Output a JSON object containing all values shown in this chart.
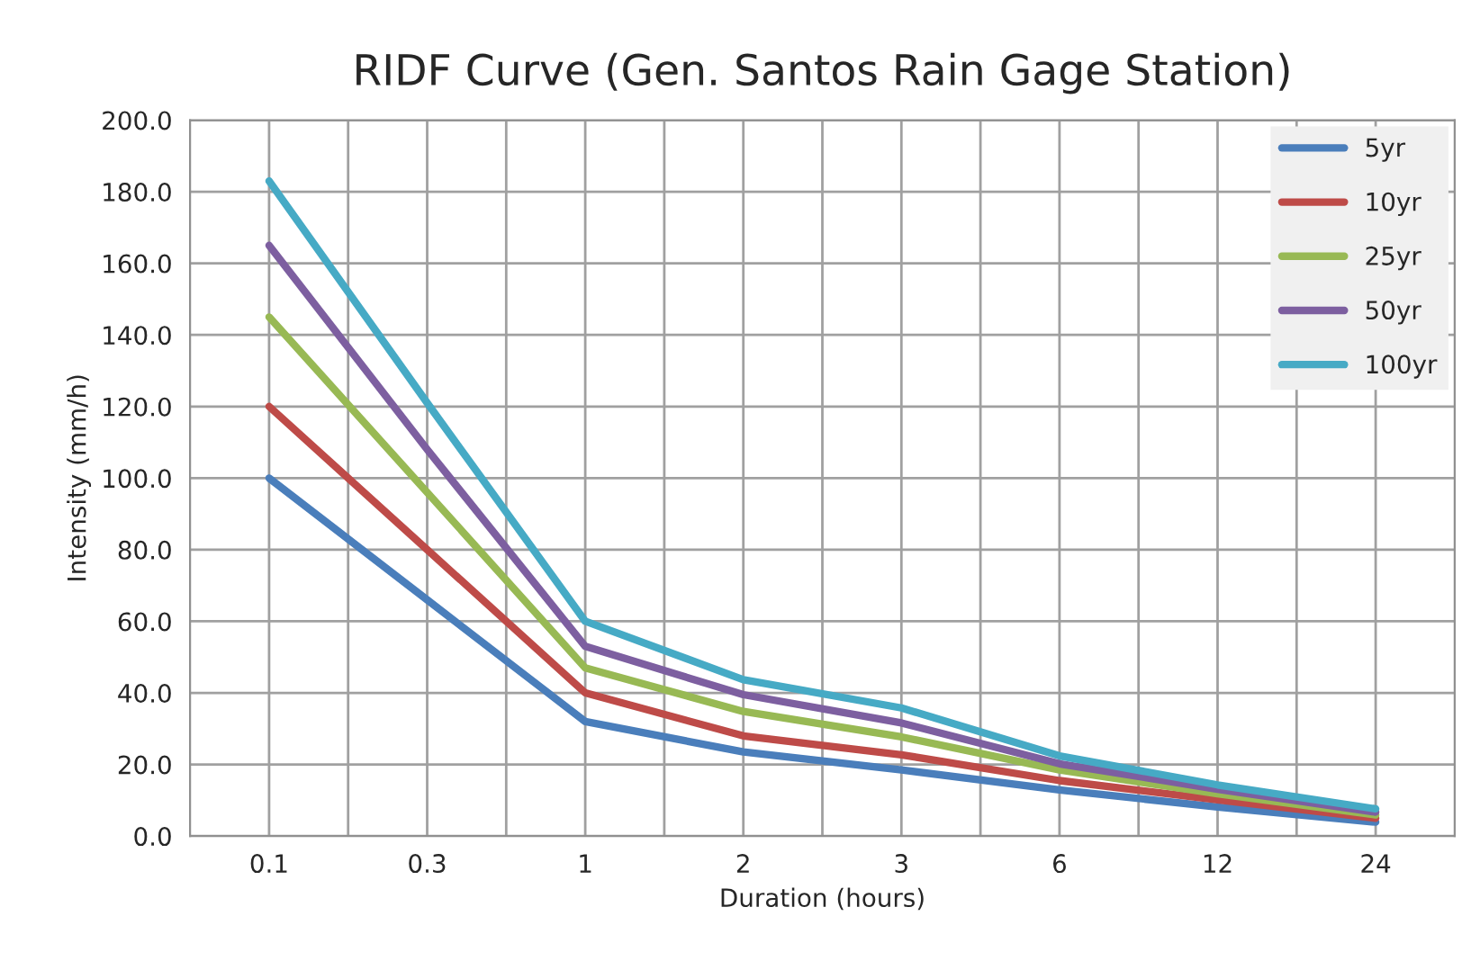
{
  "chart_data": {
    "type": "line",
    "title": "RIDF Curve (Gen. Santos Rain Gage Station)",
    "xlabel": "Duration (hours)",
    "ylabel": "Intensity (mm/h)",
    "categories": [
      "0.1",
      "0.3",
      "1",
      "2",
      "3",
      "6",
      "12",
      "24"
    ],
    "ylim": [
      0,
      200
    ],
    "yticks": [
      {
        "value": 0,
        "label": "0.0"
      },
      {
        "value": 20,
        "label": "20.0"
      },
      {
        "value": 40,
        "label": "40.0"
      },
      {
        "value": 60,
        "label": "60.0"
      },
      {
        "value": 80,
        "label": "80.0"
      },
      {
        "value": 100,
        "label": "100.0"
      },
      {
        "value": 120,
        "label": "120.0"
      },
      {
        "value": 140,
        "label": "140.0"
      },
      {
        "value": 160,
        "label": "160.0"
      },
      {
        "value": 180,
        "label": "180.0"
      },
      {
        "value": 200,
        "label": "200.0"
      }
    ],
    "grid": true,
    "legend": "top right",
    "marker": "none",
    "line_style": "solid",
    "series": [
      {
        "name": "5yr",
        "color": "#4a7ebb",
        "values": [
          100,
          66,
          32,
          23.5,
          18.5,
          12.9,
          8.1,
          3.9
        ]
      },
      {
        "name": "10yr",
        "color": "#be4b48",
        "values": [
          120,
          80,
          40,
          28,
          22.7,
          15.5,
          10.1,
          5.0
        ]
      },
      {
        "name": "25yr",
        "color": "#98b954",
        "values": [
          145,
          96,
          47,
          34.8,
          27.7,
          18.5,
          11.8,
          5.9
        ]
      },
      {
        "name": "50yr",
        "color": "#7d5fa0",
        "values": [
          165,
          108,
          53,
          39.5,
          31.6,
          20.2,
          13.1,
          6.7
        ]
      },
      {
        "name": "100yr",
        "color": "#46aac5",
        "values": [
          183,
          121,
          60,
          43.7,
          35.8,
          22.4,
          14.3,
          7.6
        ]
      }
    ]
  }
}
